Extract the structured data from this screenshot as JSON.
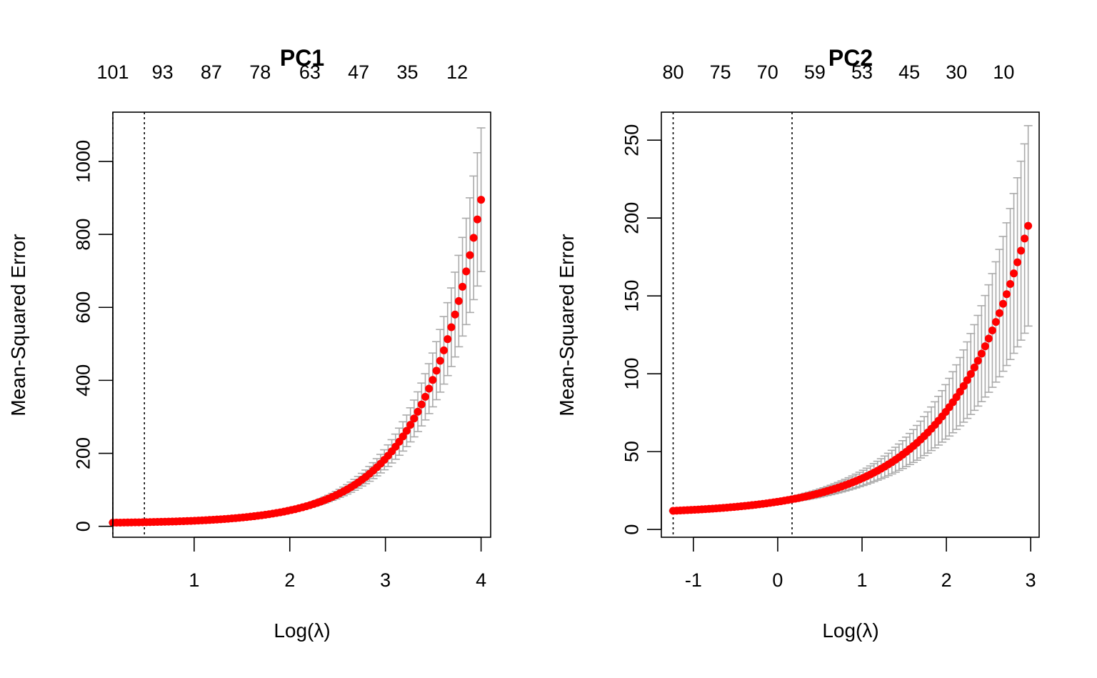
{
  "chart_data": [
    {
      "type": "scatter",
      "title": "PC1",
      "xlabel": "Log(λ)",
      "ylabel": "Mean-Squared Error",
      "xlim": [
        0.15,
        4.1
      ],
      "ylim": [
        -30,
        1135
      ],
      "x_ticks": [
        "1",
        "2",
        "3",
        "4"
      ],
      "y_ticks": [
        "0",
        "200",
        "400",
        "600",
        "800",
        "1000"
      ],
      "top_ticks": [
        {
          "x": 0.15,
          "label": "101"
        },
        {
          "x": 0.67,
          "label": "93"
        },
        {
          "x": 1.18,
          "label": "87"
        },
        {
          "x": 1.69,
          "label": "78"
        },
        {
          "x": 2.21,
          "label": "63"
        },
        {
          "x": 2.72,
          "label": "47"
        },
        {
          "x": 3.23,
          "label": "35"
        },
        {
          "x": 3.75,
          "label": "12"
        }
      ],
      "vlines": [
        0.15,
        0.48
      ],
      "point_color": "#ff0000",
      "errorbar_color": "#aaaaaa",
      "grid": false,
      "legend": "none",
      "series": [
        {
          "x_start": 0.15,
          "x_end": 4.0,
          "n_points": 100,
          "mse_at_start": 10,
          "mse_at_end": 895,
          "growth_rate": 1.61,
          "relative_error_near_end": 0.22
        }
      ]
    },
    {
      "type": "scatter",
      "title": "PC2",
      "xlabel": "Log(λ)",
      "ylabel": "Mean-Squared Error",
      "xlim": [
        -1.38,
        3.1
      ],
      "ylim": [
        -5,
        268
      ],
      "x_ticks": [
        "-1",
        "0",
        "1",
        "2",
        "3"
      ],
      "y_ticks": [
        "0",
        "50",
        "100",
        "150",
        "200",
        "250"
      ],
      "top_ticks": [
        {
          "x": -1.24,
          "label": "80"
        },
        {
          "x": -0.68,
          "label": "75"
        },
        {
          "x": -0.12,
          "label": "70"
        },
        {
          "x": 0.44,
          "label": "59"
        },
        {
          "x": 1.0,
          "label": "53"
        },
        {
          "x": 1.56,
          "label": "45"
        },
        {
          "x": 2.12,
          "label": "30"
        },
        {
          "x": 2.68,
          "label": "10"
        }
      ],
      "vlines": [
        -1.24,
        0.17
      ],
      "point_color": "#ff0000",
      "errorbar_color": "#aaaaaa",
      "grid": false,
      "legend": "none",
      "series": [
        {
          "x_start": -1.24,
          "x_end": 2.97,
          "n_points": 100,
          "mse_at_start": 12,
          "mse_at_end": 195,
          "growth_rate": 1.06,
          "relative_error_near_end": 0.33
        }
      ]
    }
  ]
}
